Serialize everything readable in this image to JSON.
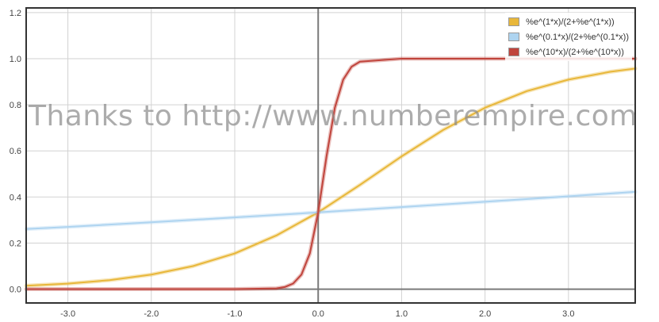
{
  "chart_data": {
    "type": "line",
    "title": "",
    "xlabel": "",
    "ylabel": "",
    "xlim": [
      -3.5,
      3.8
    ],
    "ylim": [
      -0.06,
      1.22
    ],
    "grid": true,
    "legend_position": "top-right",
    "x_ticks": [
      -3.0,
      -2.0,
      -1.0,
      0.0,
      1.0,
      2.0,
      3.0
    ],
    "x_tick_labels": [
      "-3.0",
      "-2.0",
      "-1.0",
      "0.0",
      "1.0",
      "2.0",
      "3.0"
    ],
    "y_ticks": [
      0.0,
      0.2,
      0.4,
      0.6,
      0.8,
      1.0,
      1.2
    ],
    "y_tick_labels": [
      "0.0",
      "0.2",
      "0.4",
      "0.6",
      "0.8",
      "1.0",
      "1.2"
    ],
    "series": [
      {
        "name": "%e^(1*x)/(2+%e^(1*x))",
        "color": "#e8b73a",
        "x": [
          -3.5,
          -3.0,
          -2.5,
          -2.0,
          -1.5,
          -1.0,
          -0.5,
          0.0,
          0.5,
          1.0,
          1.5,
          2.0,
          2.5,
          3.0,
          3.5,
          3.8
        ],
        "y": [
          0.015,
          0.024,
          0.039,
          0.063,
          0.1,
          0.155,
          0.233,
          0.333,
          0.452,
          0.576,
          0.691,
          0.787,
          0.859,
          0.909,
          0.943,
          0.957
        ]
      },
      {
        "name": "%e^(0.1*x)/(2+%e^(0.1*x))",
        "color": "#aed4f0",
        "x": [
          -3.5,
          -3.0,
          -2.0,
          -1.0,
          0.0,
          1.0,
          2.0,
          3.0,
          3.8
        ],
        "y": [
          0.261,
          0.27,
          0.29,
          0.311,
          0.333,
          0.356,
          0.379,
          0.403,
          0.422
        ]
      },
      {
        "name": "%e^(10*x)/(2+%e^(10*x))",
        "color": "#c0443c",
        "x": [
          -3.5,
          -1.0,
          -0.5,
          -0.4,
          -0.3,
          -0.2,
          -0.1,
          0.0,
          0.1,
          0.2,
          0.3,
          0.4,
          0.5,
          1.0,
          3.8
        ],
        "y": [
          0.0,
          2e-05,
          0.0034,
          0.0091,
          0.0243,
          0.0634,
          0.155,
          0.333,
          0.576,
          0.787,
          0.909,
          0.965,
          0.987,
          1.0,
          1.0
        ]
      }
    ],
    "watermark": "Thanks to http://www.numberempire.com"
  }
}
